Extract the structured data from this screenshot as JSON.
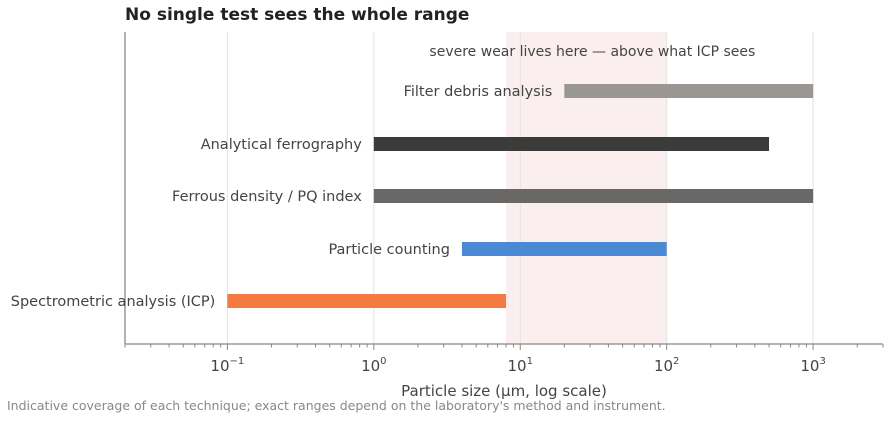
{
  "chart_data": {
    "type": "bar",
    "orientation": "horizontal-range",
    "title": "No single test sees the whole range",
    "xlabel": "Particle size (μm, log scale)",
    "x_scale": "log",
    "xlim": [
      0.02,
      3000
    ],
    "x_ticks": [
      {
        "base": "10",
        "exp": "−1",
        "value": 0.1
      },
      {
        "base": "10",
        "exp": "0",
        "value": 1
      },
      {
        "base": "10",
        "exp": "1",
        "value": 10
      },
      {
        "base": "10",
        "exp": "2",
        "value": 100
      },
      {
        "base": "10",
        "exp": "3",
        "value": 1000
      }
    ],
    "grid": true,
    "highlight": {
      "from": 8,
      "to": 100,
      "color": "#fbeeee",
      "label": "severe wear lives here — above what ICP sees"
    },
    "series": [
      {
        "label": "Spectrometric analysis (ICP)",
        "min": 0.1,
        "max": 8,
        "color": "#f47a42"
      },
      {
        "label": "Particle counting",
        "min": 4,
        "max": 100,
        "color": "#4a8ad4"
      },
      {
        "label": "Ferrous density / PQ index",
        "min": 1,
        "max": 1000,
        "color": "#6a6866"
      },
      {
        "label": "Analytical ferrography",
        "min": 1,
        "max": 500,
        "color": "#3b3b3b"
      },
      {
        "label": "Filter debris analysis",
        "min": 20,
        "max": 1000,
        "color": "#9a9793"
      }
    ]
  },
  "footnote": "Indicative coverage of each technique; exact ranges depend on the laboratory's method and instrument."
}
